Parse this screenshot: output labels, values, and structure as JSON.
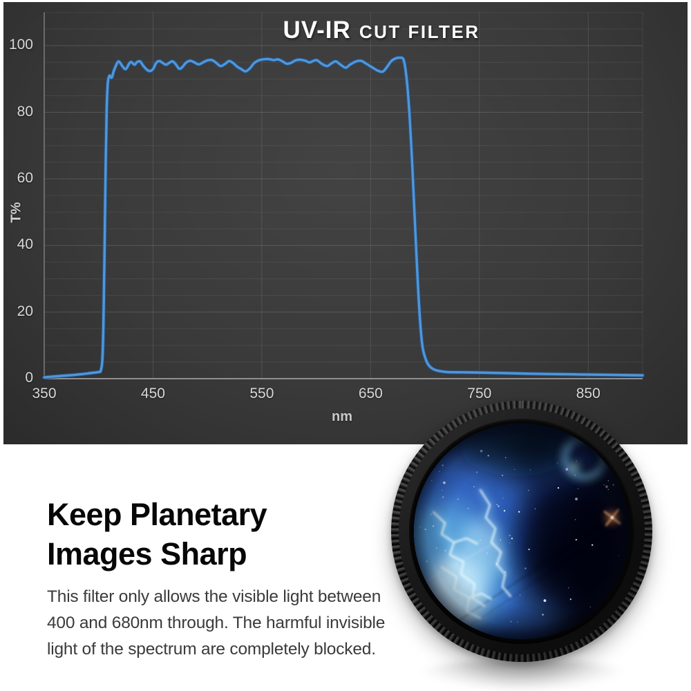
{
  "chart": {
    "title_main": "UV-IR",
    "title_sub": "CUT FILTER",
    "y_axis_label": "T%",
    "x_axis_label": "nm",
    "panel_bg": "#3a3a3a",
    "line_color": "#5096da",
    "label_color": "#d8d8d8"
  },
  "chart_data": {
    "type": "line",
    "title": "UV-IR CUT FILTER",
    "xlabel": "nm",
    "ylabel": "T%",
    "xlim": [
      350,
      900
    ],
    "ylim": [
      0,
      110
    ],
    "x_tick_values": [
      350,
      450,
      550,
      650,
      750,
      850
    ],
    "y_tick_values": [
      0,
      20,
      40,
      60,
      80,
      100
    ],
    "grid": "horizontal minor every 5, vertical at labeled ticks",
    "legend": "none",
    "description": "Transmission passband roughly 400-680 nm at ~95%, blocked (<2%) elsewhere",
    "series": [
      {
        "name": "transmission",
        "points": [
          [
            350,
            0.4
          ],
          [
            365,
            0.8
          ],
          [
            380,
            1.2
          ],
          [
            393,
            1.7
          ],
          [
            400,
            2.0
          ],
          [
            402,
            2.5
          ],
          [
            403.5,
            6
          ],
          [
            404.5,
            18
          ],
          [
            405.5,
            40
          ],
          [
            406.5,
            65
          ],
          [
            407.5,
            82
          ],
          [
            408.5,
            89
          ],
          [
            410,
            91.0
          ],
          [
            412,
            90.4
          ],
          [
            414,
            92.5
          ],
          [
            417,
            94.8
          ],
          [
            419,
            95.2
          ],
          [
            422,
            93.8
          ],
          [
            425,
            93.0
          ],
          [
            428,
            94.6
          ],
          [
            430,
            95.1
          ],
          [
            433,
            94.3
          ],
          [
            435,
            95.0
          ],
          [
            438,
            95.3
          ],
          [
            441,
            94.0
          ],
          [
            444,
            92.9
          ],
          [
            447,
            92.4
          ],
          [
            450,
            93.0
          ],
          [
            453,
            94.9
          ],
          [
            456,
            95.4
          ],
          [
            459,
            94.8
          ],
          [
            462,
            94.3
          ],
          [
            465,
            94.9
          ],
          [
            468,
            95.3
          ],
          [
            471,
            94.4
          ],
          [
            474,
            93.1
          ],
          [
            477,
            93.6
          ],
          [
            480,
            94.8
          ],
          [
            484,
            95.5
          ],
          [
            488,
            95.0
          ],
          [
            492,
            94.4
          ],
          [
            496,
            95.0
          ],
          [
            500,
            95.6
          ],
          [
            504,
            95.7
          ],
          [
            508,
            94.9
          ],
          [
            512,
            93.9
          ],
          [
            516,
            94.5
          ],
          [
            520,
            95.4
          ],
          [
            524,
            94.7
          ],
          [
            527,
            93.8
          ],
          [
            531,
            93.0
          ],
          [
            535,
            92.3
          ],
          [
            539,
            93.2
          ],
          [
            543,
            94.8
          ],
          [
            547,
            95.6
          ],
          [
            551,
            95.9
          ],
          [
            556,
            96.0
          ],
          [
            561,
            95.7
          ],
          [
            565,
            95.9
          ],
          [
            569,
            95.3
          ],
          [
            573,
            94.6
          ],
          [
            577,
            94.9
          ],
          [
            581,
            95.6
          ],
          [
            585,
            95.8
          ],
          [
            590,
            95.5
          ],
          [
            594,
            95.0
          ],
          [
            600,
            95.7
          ],
          [
            605,
            94.6
          ],
          [
            610,
            93.9
          ],
          [
            614,
            94.7
          ],
          [
            618,
            95.3
          ],
          [
            622,
            94.4
          ],
          [
            627,
            93.4
          ],
          [
            631,
            94.3
          ],
          [
            636,
            95.2
          ],
          [
            641,
            95.5
          ],
          [
            646,
            94.6
          ],
          [
            651,
            93.6
          ],
          [
            656,
            92.6
          ],
          [
            661,
            92.2
          ],
          [
            665,
            93.6
          ],
          [
            669,
            95.4
          ],
          [
            673,
            96.2
          ],
          [
            677,
            96.4
          ],
          [
            680,
            96.0
          ],
          [
            682,
            93
          ],
          [
            684,
            87
          ],
          [
            686,
            78
          ],
          [
            688,
            66
          ],
          [
            690,
            52
          ],
          [
            692,
            38
          ],
          [
            694,
            25
          ],
          [
            696,
            15
          ],
          [
            698,
            9
          ],
          [
            701,
            5.5
          ],
          [
            704,
            3.8
          ],
          [
            708,
            2.8
          ],
          [
            713,
            2.3
          ],
          [
            720,
            2.0
          ],
          [
            735,
            1.9
          ],
          [
            755,
            1.8
          ],
          [
            775,
            1.65
          ],
          [
            795,
            1.5
          ],
          [
            815,
            1.4
          ],
          [
            835,
            1.3
          ],
          [
            855,
            1.2
          ],
          [
            878,
            1.1
          ],
          [
            900,
            1.0
          ]
        ]
      }
    ]
  },
  "info": {
    "heading_lines": [
      "Keep Planetary",
      "Images Sharp"
    ],
    "body_lines": [
      "This filter only allows the visible light between",
      "400 and 680nm through. The harmful invisible",
      "light of the spectrum are completely blocked."
    ]
  },
  "product": {
    "name": "UV-IR cut filter with blue nebula reflection",
    "rim_color": "#141414",
    "nebula_colors": [
      "#0a1130",
      "#2f6ad2",
      "#6cc4ee",
      "#e8fbff",
      "#ff8c3a"
    ]
  }
}
